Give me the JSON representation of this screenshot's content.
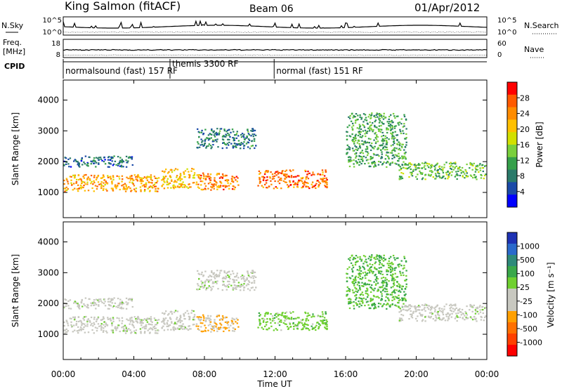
{
  "header": {
    "station": "King Salmon (fitACF)",
    "beam": "Beam 06",
    "date": "01/Apr/2012"
  },
  "noise_panel": {
    "left_label": "N.Sky",
    "right_label": "N.Search",
    "left_ticks": [
      "10^5",
      "10^0"
    ],
    "right_ticks": [
      "10^5",
      "10^0"
    ]
  },
  "freq_panel": {
    "left_label_1": "Freq.",
    "left_label_2": "[MHz]",
    "right_label": "Nave",
    "left_ticks": [
      "18",
      "8"
    ],
    "right_ticks": [
      "60",
      "0"
    ]
  },
  "cpid": {
    "label": "CPID",
    "segments": [
      {
        "start_hour": 0,
        "text": "normalsound (fast) 157 RF"
      },
      {
        "start_hour": 6.05,
        "text": "themis 3300 RF"
      },
      {
        "start_hour": 11.95,
        "text": "normal (fast) 151 RF"
      }
    ]
  },
  "axes": {
    "x_label": "Time UT",
    "x_ticks": [
      "00:00",
      "04:00",
      "08:00",
      "12:00",
      "16:00",
      "20:00",
      "00:00"
    ],
    "y_label": "Slant Range [km]",
    "y_ticks": [
      "1000",
      "2000",
      "3000",
      "4000"
    ]
  },
  "colorbars": {
    "power": {
      "label": "Power [dB]",
      "ticks": [
        "28",
        "24",
        "20",
        "16",
        "12",
        "8",
        "4"
      ],
      "colors": [
        "#ff0000",
        "#ff5a00",
        "#ff8c00",
        "#ffc000",
        "#d2e000",
        "#7ad03c",
        "#35a04a",
        "#2a7a6a",
        "#1a4aa8",
        "#0000ff"
      ]
    },
    "velocity": {
      "label": "Velocity [m s⁻¹]",
      "ticks": [
        "1000",
        "500",
        "100",
        "25",
        "-25",
        "-100",
        "-500",
        "-1000"
      ],
      "colors": [
        "#1e32b4",
        "#2a6acc",
        "#2e8a7a",
        "#3aa84a",
        "#70d030",
        "#c8c8c0",
        "#c8c8c0",
        "#ffa000",
        "#ff7000",
        "#ff4000",
        "#ff0000"
      ]
    }
  },
  "chart_data": {
    "type": "heatmap",
    "x_range_hours": [
      0,
      24
    ],
    "y_range_km": [
      180,
      4650
    ],
    "power_scale_db": [
      0,
      30
    ],
    "velocity_scale_ms": [
      -1000,
      1000
    ],
    "scatter_bands": [
      {
        "start_hour": 0,
        "end_hour": 5.5,
        "range_km": [
          1000,
          1600
        ],
        "power_db": 22,
        "velocity_ms": 0
      },
      {
        "start_hour": 5.5,
        "end_hour": 7.5,
        "range_km": [
          1100,
          1800
        ],
        "power_db": 20,
        "velocity_ms": 0
      },
      {
        "start_hour": 7.5,
        "end_hour": 10.0,
        "range_km": [
          1050,
          1650
        ],
        "power_db": 24,
        "velocity_ms": -300
      },
      {
        "start_hour": 11.0,
        "end_hour": 15.0,
        "range_km": [
          1100,
          1750
        ],
        "power_db": 25,
        "velocity_ms": 200
      },
      {
        "start_hour": 16.0,
        "end_hour": 19.5,
        "range_km": [
          1800,
          3600
        ],
        "power_db": 10,
        "velocity_ms": 300
      },
      {
        "start_hour": 19.0,
        "end_hour": 24.0,
        "range_km": [
          1400,
          2000
        ],
        "power_db": 12,
        "velocity_ms": 0
      },
      {
        "start_hour": 0,
        "end_hour": 4.0,
        "range_km": [
          1800,
          2200
        ],
        "power_db": 6,
        "velocity_ms": 0
      },
      {
        "start_hour": 7.5,
        "end_hour": 11.0,
        "range_km": [
          2400,
          3100
        ],
        "power_db": 7,
        "velocity_ms": 0
      }
    ]
  }
}
